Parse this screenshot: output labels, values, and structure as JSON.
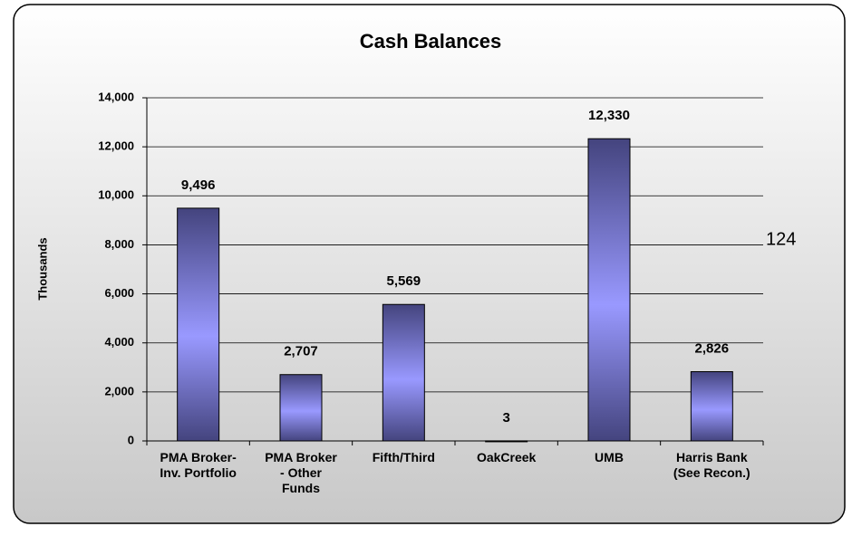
{
  "chart_data": {
    "type": "bar",
    "title": "Cash Balances",
    "y_label": "Thousands",
    "categories": [
      "PMA Broker-\nInv. Portfolio",
      "PMA Broker\n- Other\nFunds",
      "Fifth/Third",
      "OakCreek",
      "UMB",
      "Harris Bank\n(See Recon.)"
    ],
    "values": [
      9496,
      2707,
      5569,
      3,
      12330,
      2826
    ],
    "value_labels": [
      "9,496",
      "2,707",
      "5,569",
      "3",
      "12,330",
      "2,826"
    ],
    "color": "#9999ff",
    "ylim": [
      0,
      14000
    ],
    "yticks": [
      0,
      {
        "value": 2000,
        "label": "2,000"
      },
      {
        "value": 4000,
        "label": "4,000"
      },
      {
        "value": 6000,
        "label": "6,000"
      },
      {
        "value": 8000,
        "label": "8,000"
      },
      {
        "value": 10000,
        "label": "10,000"
      },
      {
        "value": 12000,
        "label": "12,000"
      },
      {
        "value": 14000,
        "label": "14,000"
      }
    ],
    "grid": true,
    "annotation": "124"
  }
}
